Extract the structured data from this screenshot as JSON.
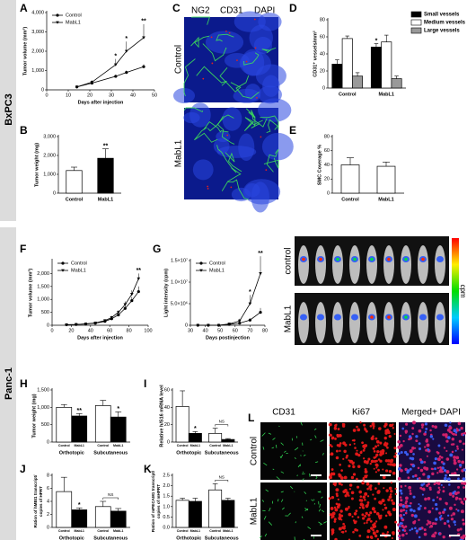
{
  "chart_data": [
    {
      "panel": "A",
      "type": "line",
      "x": [
        14,
        21,
        32,
        37,
        45
      ],
      "series": [
        {
          "name": "Control",
          "color": "#000000",
          "marker": "circle",
          "values": [
            150,
            350,
            700,
            900,
            1200
          ],
          "errors": [
            20,
            60,
            80,
            100,
            120
          ]
        },
        {
          "name": "MabL1",
          "color": "#000000",
          "marker": "triangle",
          "values": [
            150,
            400,
            1300,
            2000,
            2700
          ],
          "errors": [
            20,
            100,
            300,
            500,
            700
          ],
          "sig": [
            null,
            null,
            "*",
            "*",
            "**"
          ]
        }
      ],
      "xlim": [
        0,
        50
      ],
      "xticks": [
        0,
        10,
        20,
        30,
        40,
        50
      ],
      "ylim": [
        0,
        4000
      ],
      "yticks": [
        0,
        {
          "value": 1000,
          "label": "1,000"
        },
        {
          "value": 2000,
          "label": "2,000"
        },
        {
          "value": 3000,
          "label": "3,000"
        },
        {
          "value": 4000,
          "label": "4,000"
        }
      ],
      "xlabel": "Days after injection",
      "ylabel": "Tumor volume (mm³)",
      "legend": "upper left"
    },
    {
      "panel": "B",
      "type": "bar",
      "categories": [
        "Control",
        "MabL1"
      ],
      "values": [
        1200,
        1850
      ],
      "errors": [
        180,
        500
      ],
      "colors": [
        "#ffffff",
        "#000000"
      ],
      "sig": [
        null,
        "**"
      ],
      "ylim": [
        0,
        3000
      ],
      "yticks": [
        0,
        {
          "value": 1000,
          "label": "1,000"
        },
        {
          "value": 2000,
          "label": "2,000"
        },
        {
          "value": 3000,
          "label": "3,000"
        }
      ],
      "ylabel": "Tumor weight (mg)"
    },
    {
      "panel": "D",
      "type": "bar",
      "categories": [
        "Control",
        "MabL1"
      ],
      "series": [
        {
          "name": "Small vessels",
          "color": "#000000",
          "values": [
            28,
            48
          ],
          "errors": [
            5,
            4
          ],
          "sig": [
            null,
            "*"
          ]
        },
        {
          "name": "Medium vessels",
          "color": "#ffffff",
          "values": [
            58,
            54
          ],
          "errors": [
            3,
            8
          ]
        },
        {
          "name": "Large vessels",
          "color": "#999999",
          "values": [
            14,
            11
          ],
          "errors": [
            4,
            3
          ]
        }
      ],
      "ylim": [
        0,
        80
      ],
      "yticks": [
        0,
        20,
        40,
        60,
        80
      ],
      "ylabel": "CD31⁺ vessels/mm²",
      "legend": "right"
    },
    {
      "panel": "E",
      "type": "bar",
      "categories": [
        "Control",
        "MabL1"
      ],
      "values": [
        40,
        38
      ],
      "errors": [
        10,
        6
      ],
      "color": "#ffffff",
      "ylim": [
        0,
        80
      ],
      "yticks": [
        0,
        20,
        40,
        60,
        80
      ],
      "ylabel": "SMC Coverage %"
    },
    {
      "panel": "F",
      "type": "line",
      "x": [
        15,
        25,
        35,
        45,
        55,
        62,
        69,
        76,
        83,
        90
      ],
      "series": [
        {
          "name": "Control",
          "color": "#000000",
          "marker": "circle",
          "values": [
            20,
            30,
            50,
            80,
            150,
            250,
            400,
            650,
            950,
            1300
          ],
          "errors": [
            5,
            5,
            10,
            15,
            30,
            40,
            60,
            100,
            150,
            200
          ]
        },
        {
          "name": "MabL1",
          "color": "#000000",
          "marker": "triangle",
          "values": [
            20,
            30,
            50,
            90,
            180,
            300,
            500,
            800,
            1200,
            1800
          ],
          "errors": [
            5,
            5,
            10,
            20,
            40,
            60,
            80,
            120,
            150,
            200
          ],
          "sig": [
            null,
            null,
            null,
            null,
            null,
            null,
            null,
            null,
            null,
            "**"
          ]
        }
      ],
      "xlim": [
        0,
        100
      ],
      "xticks": [
        0,
        20,
        40,
        60,
        80,
        100
      ],
      "ylim": [
        0,
        2500
      ],
      "yticks": [
        0,
        500,
        {
          "value": 1000,
          "label": "1,000"
        },
        {
          "value": 1500,
          "label": "1,500"
        },
        {
          "value": 2000,
          "label": "2,000"
        }
      ],
      "xlabel": "Days after injection",
      "ylabel": "Tumor volume (mm³)",
      "legend": "upper left"
    },
    {
      "panel": "G",
      "type": "line",
      "x": [
        35,
        42,
        49,
        56,
        63,
        70,
        77
      ],
      "series": [
        {
          "name": "Control",
          "color": "#000000",
          "marker": "circle",
          "values": [
            0,
            0,
            0,
            200000,
            500000,
            1200000,
            3000000
          ],
          "errors": [
            0,
            0,
            0,
            100000,
            200000,
            400000,
            1000000
          ]
        },
        {
          "name": "MabL1",
          "color": "#000000",
          "marker": "triangle",
          "values": [
            0,
            0,
            0,
            300000,
            1000000,
            5000000,
            12000000
          ],
          "errors": [
            0,
            0,
            0,
            200000,
            500000,
            2000000,
            4000000
          ],
          "sig": [
            null,
            null,
            null,
            null,
            null,
            "*",
            "**"
          ]
        }
      ],
      "xlim": [
        30,
        80
      ],
      "xticks": [
        30,
        40,
        50,
        60,
        70,
        80
      ],
      "ylim": [
        0,
        15000000
      ],
      "yticks": [
        0,
        {
          "value": 5000000,
          "label": "5.0×10⁶"
        },
        {
          "value": 10000000,
          "label": "1.0×10⁷"
        },
        {
          "value": 15000000,
          "label": "1.5×10⁷"
        }
      ],
      "xlabel": "Days postinjection",
      "ylabel": "Light intensity (cpm)",
      "legend": "upper left"
    },
    {
      "panel": "H",
      "type": "bar",
      "categories": [
        "Orthotopic",
        "Subcutaneous"
      ],
      "bar_labels": true,
      "series": [
        {
          "name": "Control",
          "color": "#ffffff",
          "values": [
            1000,
            1050
          ],
          "errors": [
            80,
            150
          ]
        },
        {
          "name": "MabL1",
          "color": "#000000",
          "values": [
            750,
            720
          ],
          "errors": [
            70,
            150
          ],
          "sig": [
            "**",
            "*"
          ]
        }
      ],
      "ylim": [
        0,
        1500
      ],
      "yticks": [
        0,
        500,
        {
          "value": 1000,
          "label": "1,000"
        },
        {
          "value": 1500,
          "label": "1,500"
        }
      ],
      "ylabel": [
        "Tumor weight (mg)"
      ]
    },
    {
      "panel": "I",
      "type": "bar",
      "categories": [
        "Orthotopic",
        "Subcutaneous"
      ],
      "bar_labels": true,
      "brackets": [
        null,
        "NS"
      ],
      "series": [
        {
          "name": "Control",
          "color": "#ffffff",
          "values": [
            41,
            10
          ],
          "errors": [
            18,
            6
          ]
        },
        {
          "name": "MabL1",
          "color": "#000000",
          "values": [
            10,
            3
          ],
          "errors": [
            2,
            1
          ],
          "sig": [
            "*",
            null
          ]
        }
      ],
      "ylim": [
        0,
        60
      ],
      "yticks": [
        0,
        20,
        40,
        60
      ],
      "ylabel": [
        "Relative h/S16 mRNA level"
      ]
    },
    {
      "panel": "J",
      "type": "bar",
      "categories": [
        "Orthotopic",
        "Subcutaneous"
      ],
      "bar_labels": true,
      "brackets": [
        null,
        "NS"
      ],
      "series": [
        {
          "name": "Control",
          "color": "#ffffff",
          "values": [
            5.5,
            3.2
          ],
          "errors": [
            2.2,
            0.8
          ]
        },
        {
          "name": "MabL1",
          "color": "#000000",
          "values": [
            2.7,
            2.5
          ],
          "errors": [
            0.3,
            0.4
          ],
          "sig": [
            "*",
            null
          ]
        }
      ],
      "ylim": [
        0,
        8
      ],
      "yticks": [
        0,
        2,
        4,
        6,
        8
      ],
      "ylabel": [
        "Ration of hMBI1 transcript/",
        "copies of HPRT"
      ]
    },
    {
      "panel": "K",
      "type": "bar",
      "categories": [
        "Orthotopic",
        "Subcutaneous"
      ],
      "bar_labels": true,
      "brackets": [
        null,
        "NS"
      ],
      "series": [
        {
          "name": "Control",
          "color": "#ffffff",
          "values": [
            1.3,
            1.8
          ],
          "errors": [
            0.1,
            0.3
          ]
        },
        {
          "name": "MabL1",
          "color": "#000000",
          "values": [
            1.25,
            1.3
          ],
          "errors": [
            0.15,
            0.1
          ]
        }
      ],
      "ylim": [
        0,
        2.5
      ],
      "yticks": [
        {
          "value": 0,
          "label": "0.0"
        },
        0.5,
        {
          "value": 1,
          "label": "1.0"
        },
        1.5,
        {
          "value": 2,
          "label": "2.0"
        },
        2.5
      ],
      "ylabel": [
        "Ration of mPECAM1 transcript/",
        "copies of mHPRT"
      ]
    }
  ],
  "side_labels": [
    "BxPC3",
    "Panc-1"
  ],
  "panel_C": {
    "panel": "C",
    "channels": [
      "NG2",
      "CD31",
      "DAPI"
    ],
    "channel_colors": [
      "#e0201f",
      "#1fa84a",
      "#2040d0"
    ],
    "rows": [
      "Control",
      "MabL1"
    ]
  },
  "panel_G_image": {
    "rows": [
      "control",
      "MabL1"
    ],
    "colorbar": "cpm"
  },
  "panel_L": {
    "panel": "L",
    "columns": [
      "CD31",
      "Ki67",
      "Merged+ DAPI"
    ],
    "column_colors": [
      "#1fa84a",
      "#e0201f",
      "#2040d0"
    ],
    "rows": [
      "Control",
      "MabL1"
    ]
  }
}
